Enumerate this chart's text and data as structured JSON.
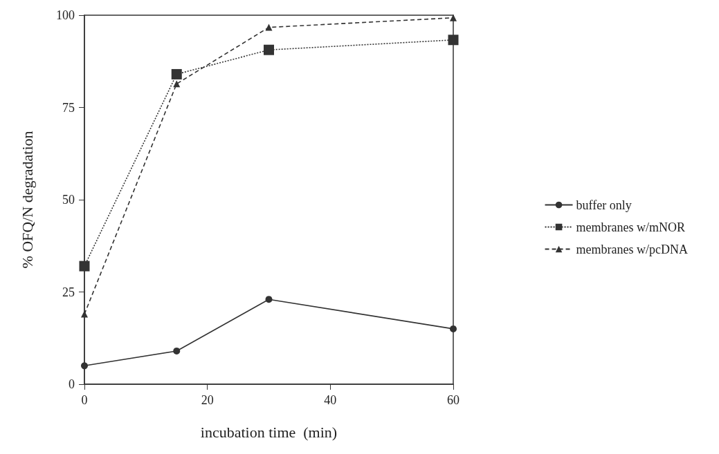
{
  "chart_data": {
    "type": "line",
    "xlabel": "incubation time  (min)",
    "ylabel": "% OFQ/N degradation",
    "x": [
      0,
      15,
      30,
      60
    ],
    "xlim": [
      0,
      60
    ],
    "xticks": [
      0,
      20,
      40,
      60
    ],
    "ylim": [
      0,
      100
    ],
    "yticks": [
      0,
      25,
      50,
      75,
      100
    ],
    "grid": false,
    "legend": "right",
    "series": [
      {
        "name": "buffer only",
        "color": "#333333",
        "marker": "circle",
        "line_style": "solid",
        "values": [
          5,
          9,
          23,
          15
        ]
      },
      {
        "name": "membranes w/mNOR",
        "color": "#333333",
        "marker": "square",
        "line_style": "dotted",
        "values": [
          32,
          84,
          90.6,
          93.3
        ]
      },
      {
        "name": "membranes w/pcDNA",
        "color": "#333333",
        "marker": "triangle",
        "line_style": "dashed",
        "values": [
          19,
          81.4,
          96.7,
          99.3
        ]
      }
    ]
  }
}
